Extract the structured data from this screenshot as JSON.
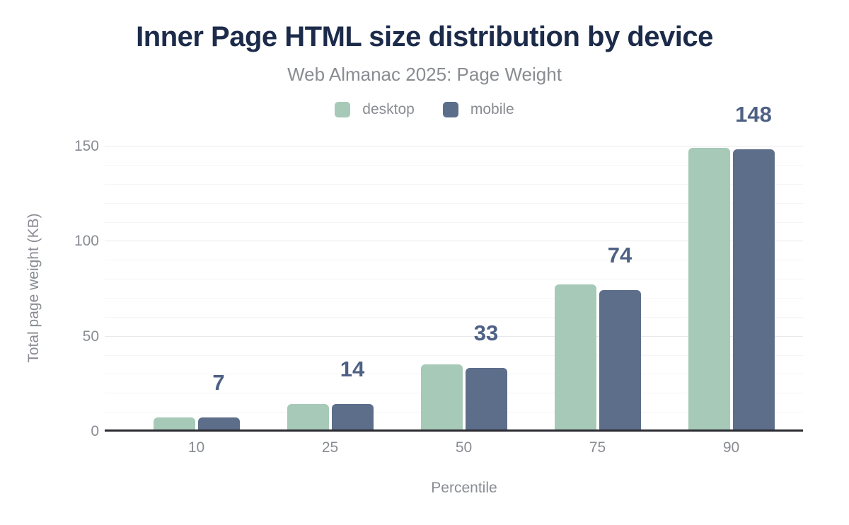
{
  "header": {
    "title": "Inner Page HTML size distribution by device",
    "subtitle": "Web Almanac 2025: Page Weight"
  },
  "legend": {
    "items": [
      {
        "label": "desktop",
        "color": "#a7c9b8"
      },
      {
        "label": "mobile",
        "color": "#5d6e8b"
      }
    ]
  },
  "chart_data": {
    "type": "bar",
    "title": "Inner Page HTML size distribution by device",
    "subtitle": "Web Almanac 2025: Page Weight",
    "categories": [
      "10",
      "25",
      "50",
      "75",
      "90"
    ],
    "series": [
      {
        "name": "desktop",
        "color": "#a7c9b8",
        "values": [
          7,
          14,
          35,
          77,
          149
        ]
      },
      {
        "name": "mobile",
        "color": "#5d6e8b",
        "values": [
          7,
          14,
          33,
          74,
          148
        ]
      }
    ],
    "bar_value_labels": {
      "labeled_series": "mobile",
      "values": [
        "7",
        "14",
        "33",
        "74",
        "148"
      ]
    },
    "xlabel": "Percentile",
    "ylabel": "Total page weight (KB)",
    "ylim": [
      0,
      150
    ],
    "yticks": [
      0,
      50,
      100,
      150
    ],
    "minor_grid_step": 10,
    "grid": true,
    "legend_position": "top-center"
  },
  "colors": {
    "title_text": "#1c2b4a",
    "muted_text": "#898c92",
    "value_label_text": "#4e6185",
    "axis_line": "#2b2b32",
    "major_gridline": "#e9e9ec",
    "minor_gridline": "#f5f5f7",
    "background": "#ffffff"
  }
}
